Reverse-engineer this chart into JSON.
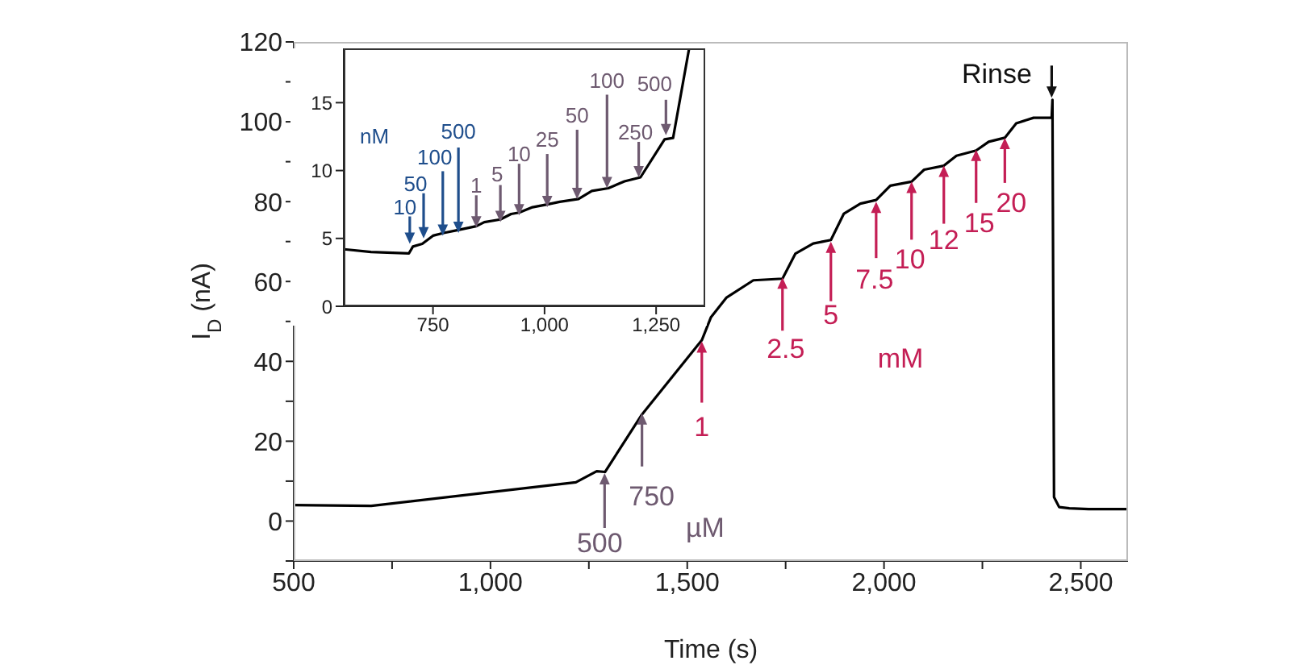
{
  "chart_data": [
    {
      "type": "line",
      "xlabel": "Time (s)",
      "ylabel": "I$_{D}$ (nA)",
      "color": "#000000",
      "xlim": [
        500,
        2620
      ],
      "ylim": [
        -10,
        120
      ],
      "xticks": [
        500,
        {
          "value": 750,
          "label": null
        },
        {
          "value": 1000,
          "label": "1,000"
        },
        {
          "value": 1250,
          "label": null
        },
        {
          "value": 1500,
          "label": "1,500"
        },
        {
          "value": 1750,
          "label": null
        },
        {
          "value": 2000,
          "label": "2,000"
        },
        {
          "value": 2250,
          "label": null
        },
        {
          "value": 2500,
          "label": "2,500"
        }
      ],
      "yticks": [
        {
          "value": -10,
          "label": null
        },
        0,
        {
          "value": 10,
          "label": null
        },
        20,
        {
          "value": 30,
          "label": null
        },
        40,
        {
          "value": 50,
          "label": null
        },
        60,
        {
          "value": 70,
          "label": null
        },
        80,
        {
          "value": 90,
          "label": null
        },
        100,
        {
          "value": 110,
          "label": null
        },
        120
      ],
      "x": [
        500,
        697,
        1217,
        1270,
        1291,
        1385,
        1537,
        1560,
        1600,
        1668,
        1742,
        1775,
        1820,
        1865,
        1898,
        1940,
        1980,
        2016,
        2070,
        2102,
        2152,
        2184,
        2234,
        2266,
        2307,
        2336,
        2380,
        2426,
        2428,
        2432,
        2445,
        2471,
        2520,
        2620
      ],
      "values": [
        4.0,
        3.8,
        9.7,
        12.5,
        12.3,
        26.7,
        45.3,
        51,
        56,
        60.3,
        60.7,
        67,
        69.5,
        70.4,
        77,
        79.5,
        80.4,
        84,
        85,
        88,
        89,
        91.5,
        92.8,
        95,
        96,
        99.6,
        101,
        101,
        105.5,
        6,
        3.5,
        3.2,
        3.0,
        3.0
      ],
      "annotations": [
        {
          "text": "500",
          "x": 1290,
          "y": 12
        },
        {
          "text": "750",
          "x": 1385,
          "y": 27
        },
        "µM",
        {
          "text": "1",
          "x": 1537,
          "y": 45
        },
        {
          "text": "2.5",
          "x": 1742,
          "y": 61
        },
        {
          "text": "5",
          "x": 1865,
          "y": 70
        },
        {
          "text": "7.5",
          "x": 1980,
          "y": 80
        },
        {
          "text": "10",
          "x": 2070,
          "y": 85
        },
        {
          "text": "12",
          "x": 2152,
          "y": 89
        },
        {
          "text": "15",
          "x": 2234,
          "y": 93
        },
        {
          "text": "20",
          "x": 2307,
          "y": 96
        },
        "mM",
        {
          "text": "Rinse",
          "x": 2426,
          "y": 106
        }
      ]
    },
    {
      "type": "line",
      "color": "#000000",
      "xlim": [
        550,
        1360
      ],
      "ylim": [
        0,
        19
      ],
      "xticks": [
        {
          "value": 750,
          "label": "750"
        },
        {
          "value": 1000,
          "label": "1,000"
        },
        {
          "value": 1250,
          "label": "1,250"
        }
      ],
      "yticks": [
        0,
        5,
        10,
        15
      ],
      "x": [
        551,
        611,
        696,
        705,
        726,
        750,
        774,
        804,
        847,
        865,
        901,
        925,
        943,
        973,
        1006,
        1034,
        1076,
        1106,
        1143,
        1179,
        1215,
        1269,
        1288,
        1324
      ],
      "values": [
        4.2,
        4.0,
        3.9,
        4.4,
        4.6,
        5.2,
        5.4,
        5.6,
        5.9,
        6.2,
        6.4,
        6.8,
        6.9,
        7.3,
        7.5,
        7.7,
        7.9,
        8.5,
        8.7,
        9.2,
        9.5,
        12.3,
        12.4,
        19
      ],
      "annotations": [
        "nM",
        {
          "text": "10",
          "x": 698,
          "y": 4.6
        },
        {
          "text": "50",
          "x": 729,
          "y": 5.0
        },
        {
          "text": "100",
          "x": 772,
          "y": 5.2
        },
        {
          "text": "500",
          "x": 807,
          "y": 5.4
        },
        {
          "text": "1",
          "x": 847,
          "y": 5.8
        },
        {
          "text": "5",
          "x": 901,
          "y": 6.2
        },
        {
          "text": "10",
          "x": 943,
          "y": 6.7
        },
        {
          "text": "25",
          "x": 1006,
          "y": 7.3
        },
        {
          "text": "50",
          "x": 1073,
          "y": 7.9
        },
        {
          "text": "100",
          "x": 1140,
          "y": 8.7
        },
        {
          "text": "250",
          "x": 1211,
          "y": 9.5
        },
        {
          "text": "500",
          "x": 1272,
          "y": 12.6
        }
      ]
    }
  ]
}
